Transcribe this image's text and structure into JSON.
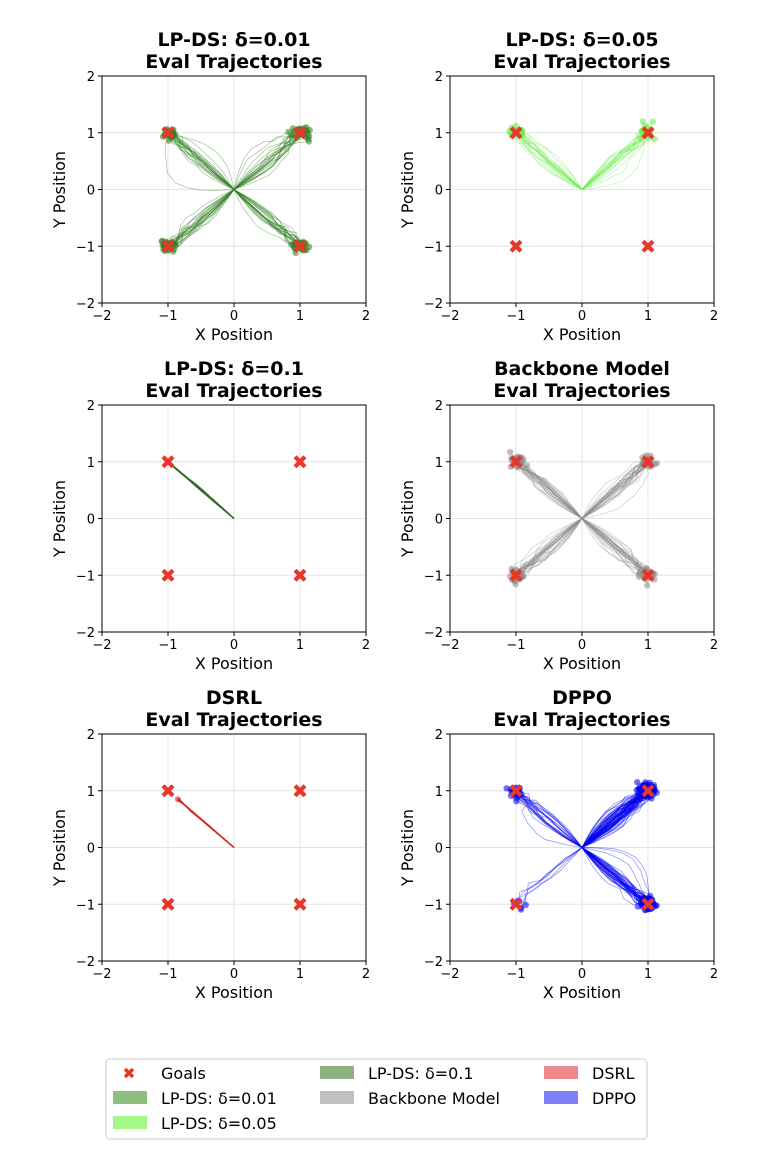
{
  "chart_data": [
    {
      "type": "line",
      "title": "LP-DS: δ=0.01",
      "subtitle": "Eval Trajectories",
      "xlabel": "X Position",
      "ylabel": "Y Position",
      "xlim": [
        -2,
        2
      ],
      "ylim": [
        -2,
        2
      ],
      "xticks": [
        -2,
        -1,
        0,
        1,
        2
      ],
      "yticks": [
        -2,
        -1,
        0,
        1,
        2
      ],
      "grid": true,
      "goals": [
        [
          -1,
          1
        ],
        [
          1,
          1
        ],
        [
          -1,
          -1
        ],
        [
          1,
          -1
        ]
      ],
      "series": [
        {
          "color": "#2e7d1e",
          "start": [
            0,
            0
          ],
          "endpoints": [
            [
              -1,
              1
            ],
            [
              1,
              1
            ],
            [
              -1,
              -1
            ],
            [
              1,
              -1
            ]
          ],
          "trajectory_count": 100,
          "endpoint_weights": [
            1,
            1,
            1,
            1
          ]
        }
      ]
    },
    {
      "type": "line",
      "title": "LP-DS: δ=0.05",
      "subtitle": "Eval Trajectories",
      "xlabel": "X Position",
      "ylabel": "Y Position",
      "xlim": [
        -2,
        2
      ],
      "ylim": [
        -2,
        2
      ],
      "xticks": [
        -2,
        -1,
        0,
        1,
        2
      ],
      "yticks": [
        -2,
        -1,
        0,
        1,
        2
      ],
      "grid": true,
      "goals": [
        [
          -1,
          1
        ],
        [
          1,
          1
        ],
        [
          -1,
          -1
        ],
        [
          1,
          -1
        ]
      ],
      "series": [
        {
          "color": "#66ee44",
          "start": [
            0,
            0
          ],
          "endpoints": [
            [
              -1,
              1
            ],
            [
              1,
              1
            ]
          ],
          "trajectory_count": 40,
          "endpoint_weights": [
            1,
            1
          ]
        }
      ]
    },
    {
      "type": "line",
      "title": "LP-DS: δ=0.1",
      "subtitle": "Eval Trajectories",
      "xlabel": "X Position",
      "ylabel": "Y Position",
      "xlim": [
        -2,
        2
      ],
      "ylim": [
        -2,
        2
      ],
      "xticks": [
        -2,
        -1,
        0,
        1,
        2
      ],
      "yticks": [
        -2,
        -1,
        0,
        1,
        2
      ],
      "grid": true,
      "goals": [
        [
          -1,
          1
        ],
        [
          1,
          1
        ],
        [
          -1,
          -1
        ],
        [
          1,
          -1
        ]
      ],
      "series": [
        {
          "color": "#2d6a1f",
          "start": [
            0,
            0
          ],
          "endpoints": [
            [
              -1,
              1
            ]
          ],
          "trajectory_count": 6,
          "endpoint_weights": [
            1
          ]
        }
      ]
    },
    {
      "type": "line",
      "title": "Backbone Model",
      "subtitle": "Eval Trajectories",
      "xlabel": "X Position",
      "ylabel": "Y Position",
      "xlim": [
        -2,
        2
      ],
      "ylim": [
        -2,
        2
      ],
      "xticks": [
        -2,
        -1,
        0,
        1,
        2
      ],
      "yticks": [
        -2,
        -1,
        0,
        1,
        2
      ],
      "grid": true,
      "goals": [
        [
          -1,
          1
        ],
        [
          1,
          1
        ],
        [
          -1,
          -1
        ],
        [
          1,
          -1
        ]
      ],
      "series": [
        {
          "color": "#8c8c8c",
          "start": [
            0,
            0
          ],
          "endpoints": [
            [
              -1,
              1
            ],
            [
              1,
              1
            ],
            [
              -1,
              -1
            ],
            [
              1,
              -1
            ]
          ],
          "trajectory_count": 120,
          "endpoint_weights": [
            1,
            1,
            1,
            1
          ]
        }
      ]
    },
    {
      "type": "line",
      "title": "DSRL",
      "subtitle": "Eval Trajectories",
      "xlabel": "X Position",
      "ylabel": "Y Position",
      "xlim": [
        -2,
        2
      ],
      "ylim": [
        -2,
        2
      ],
      "xticks": [
        -2,
        -1,
        0,
        1,
        2
      ],
      "yticks": [
        -2,
        -1,
        0,
        1,
        2
      ],
      "grid": true,
      "goals": [
        [
          -1,
          1
        ],
        [
          1,
          1
        ],
        [
          -1,
          -1
        ],
        [
          1,
          -1
        ]
      ],
      "series": [
        {
          "color": "#d62728",
          "start": [
            0,
            0
          ],
          "endpoints": [
            [
              -0.85,
              0.85
            ]
          ],
          "trajectory_count": 6,
          "endpoint_weights": [
            1
          ]
        }
      ]
    },
    {
      "type": "line",
      "title": "DPPO",
      "subtitle": "Eval Trajectories",
      "xlabel": "X Position",
      "ylabel": "Y Position",
      "xlim": [
        -2,
        2
      ],
      "ylim": [
        -2,
        2
      ],
      "xticks": [
        -2,
        -1,
        0,
        1,
        2
      ],
      "yticks": [
        -2,
        -1,
        0,
        1,
        2
      ],
      "grid": true,
      "goals": [
        [
          -1,
          1
        ],
        [
          1,
          1
        ],
        [
          -1,
          -1
        ],
        [
          1,
          -1
        ]
      ],
      "series": [
        {
          "color": "#0000ee",
          "start": [
            0,
            0
          ],
          "endpoints": [
            [
              -1,
              1
            ],
            [
              1,
              1
            ],
            [
              -1,
              -1
            ],
            [
              1,
              -1
            ]
          ],
          "trajectory_count": 160,
          "endpoint_weights": [
            0.15,
            0.5,
            0.04,
            0.31
          ]
        }
      ]
    }
  ],
  "legend": {
    "placement": "bottom-center",
    "entries": [
      {
        "label": "Goals",
        "kind": "marker",
        "color": "#e8372a"
      },
      {
        "label": "LP-DS: δ=0.01",
        "kind": "patch",
        "color": "#8fbf7f"
      },
      {
        "label": "LP-DS: δ=0.05",
        "kind": "patch",
        "color": "#a6f78a"
      },
      {
        "label": "LP-DS: δ=0.1",
        "kind": "patch",
        "color": "#8fb283"
      },
      {
        "label": "Backbone Model",
        "kind": "patch",
        "color": "#c0c0c0"
      },
      {
        "label": "DSRL",
        "kind": "patch",
        "color": "#ee8a8a"
      },
      {
        "label": "DPPO",
        "kind": "patch",
        "color": "#7f7ff7"
      }
    ]
  }
}
